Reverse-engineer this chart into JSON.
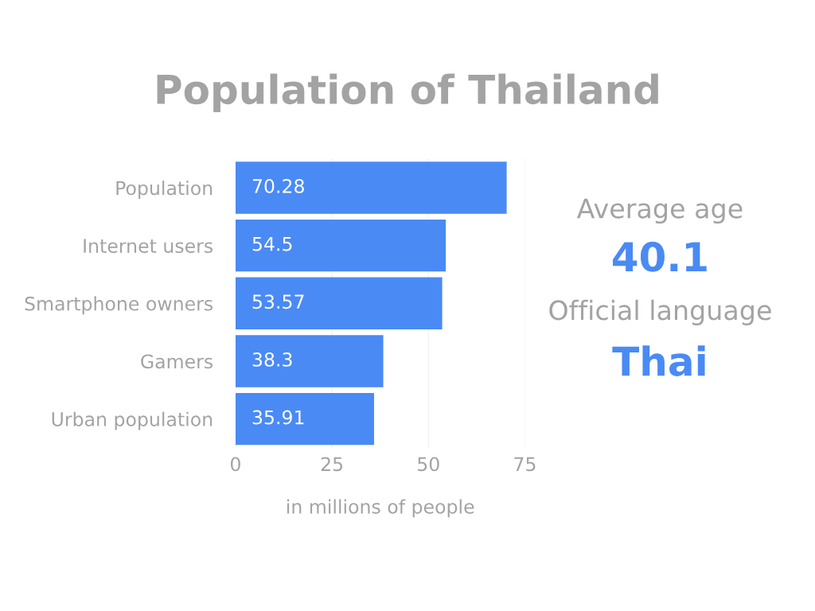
{
  "chart_data": [
    {
      "type": "bar",
      "title": "Population of Thailand",
      "orientation": "horizontal",
      "categories": [
        "Population",
        "Internet users",
        "Smartphone owners",
        "Gamers",
        "Urban population"
      ],
      "values": [
        70.28,
        54.5,
        53.57,
        38.3,
        35.91
      ],
      "color": "#4a8af4",
      "xlim": [
        0,
        75
      ],
      "xticks": [
        0,
        25,
        50,
        75
      ],
      "xlabel": "in millions of people",
      "grid": "x",
      "data_labels": true
    },
    {
      "type": "other",
      "annotations": [
        "Average age",
        "40.1",
        "Official language",
        "Thai"
      ]
    }
  ]
}
